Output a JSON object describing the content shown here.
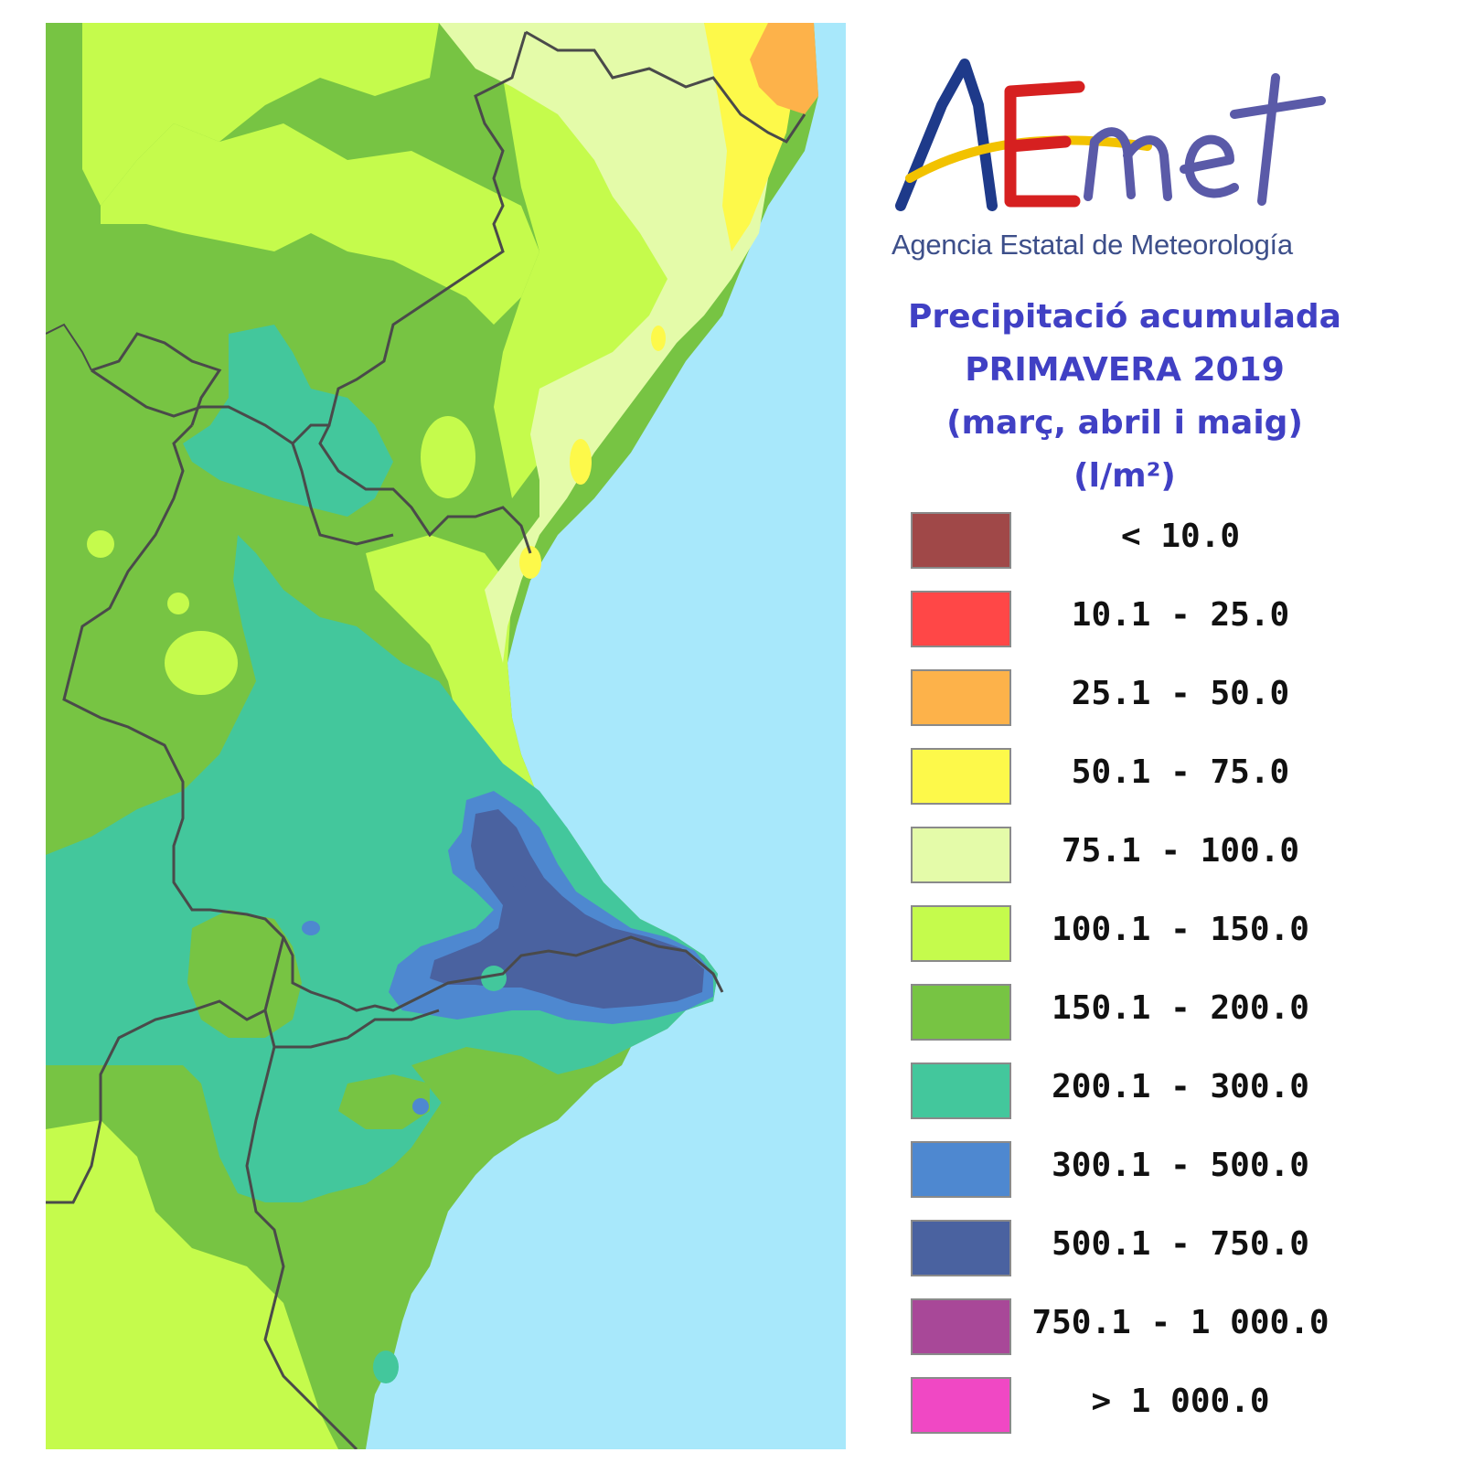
{
  "logo": {
    "wordmark": "AEmet",
    "agency": "Agencia Estatal de Meteorología",
    "colors": {
      "blue": "#1e3a8a",
      "yellow": "#f2c200",
      "red": "#d62020",
      "violet": "#5a5aa8"
    }
  },
  "title": {
    "line1": "Precipitació acumulada",
    "line2": "PRIMAVERA 2019",
    "line3": "(març, abril i maig)",
    "line4": "(l/m²)"
  },
  "legend": [
    {
      "label": "< 10.0",
      "color": "#a04848"
    },
    {
      "label": "10.1 - 25.0",
      "color": "#ff4747"
    },
    {
      "label": "25.1 - 50.0",
      "color": "#fdb24a"
    },
    {
      "label": "50.1 - 75.0",
      "color": "#fdf94a"
    },
    {
      "label": "75.1 - 100.0",
      "color": "#e4fba9"
    },
    {
      "label": "100.1 - 150.0",
      "color": "#c5fb4c"
    },
    {
      "label": "150.1 - 200.0",
      "color": "#77c443"
    },
    {
      "label": "200.1 - 300.0",
      "color": "#43c79c"
    },
    {
      "label": "300.1 - 500.0",
      "color": "#4e88d0"
    },
    {
      "label": "500.1 - 750.0",
      "color": "#4a62a0"
    },
    {
      "label": "750.1 - 1 000.0",
      "color": "#a84898"
    },
    {
      "label": "> 1 000.0",
      "color": "#f048c4"
    }
  ],
  "map": {
    "sea_color": "#a8e8fb",
    "border_color": "#4a4a4a"
  }
}
